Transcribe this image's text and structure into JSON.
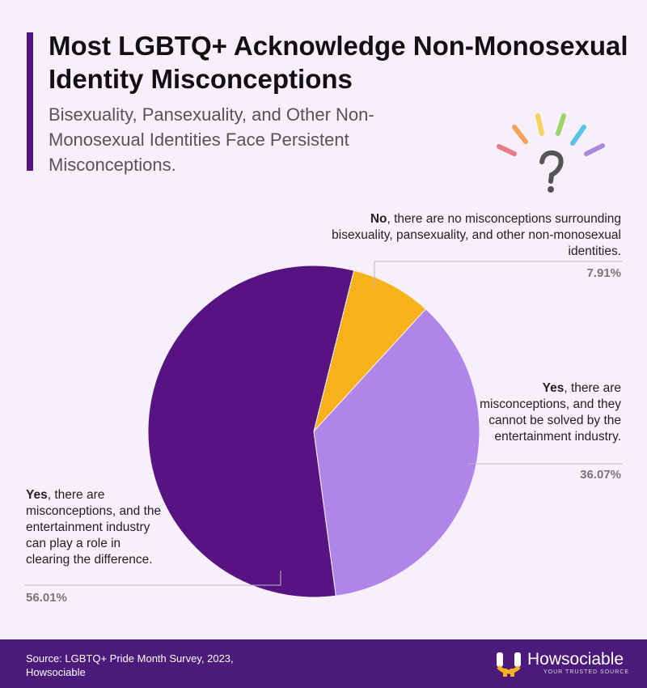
{
  "title": "Most LGBTQ+ Acknowledge Non-Monosexual Identity Misconceptions",
  "subtitle": "Bisexuality, Pansexuality, and Other Non-Monosexual Identities Face Persistent Misconceptions.",
  "chart_data": {
    "type": "pie",
    "categories": [
      "No",
      "Yes",
      "Yes"
    ],
    "descriptions": [
      ", there are no misconceptions surrounding bisexuality, pansexuality, and other non-monosexual identities.",
      ", there are misconceptions, and they cannot be solved by the entertainment industry.",
      ", there are misconceptions, and the entertainment industry can play a role in clearing the difference."
    ],
    "values": [
      7.91,
      36.07,
      56.01
    ],
    "value_labels": [
      "7.91%",
      "36.07%",
      "56.01%"
    ],
    "colors": [
      "#f9b21b",
      "#b085e8",
      "#581382"
    ]
  },
  "footer": {
    "source": "Source: LGBTQ+ Pride Month Survey, 2023, Howsociable",
    "brand": "Howsociable",
    "tagline": "YOUR TRUSTED SOURCE"
  }
}
